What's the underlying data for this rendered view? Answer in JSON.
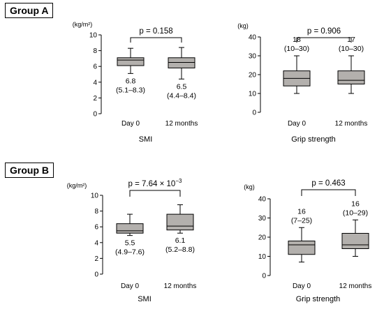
{
  "groups": [
    {
      "label": "Group A"
    },
    {
      "label": "Group B"
    }
  ],
  "chart_data": [
    {
      "type": "box",
      "group": "Group A",
      "xlabel": "SMI",
      "ylabel": "(kg/m²)",
      "ylim": [
        0,
        10
      ],
      "yticks": [
        0,
        2,
        4,
        6,
        8,
        10
      ],
      "categories": [
        "Day 0",
        "12 months"
      ],
      "boxes": [
        {
          "whislo": 5.1,
          "q1": 6.1,
          "med": 6.8,
          "q3": 7.1,
          "whishi": 8.3,
          "label_median": "6.8",
          "label_range": "(5.1–8.3)"
        },
        {
          "whislo": 4.4,
          "q1": 5.8,
          "med": 6.5,
          "q3": 7.1,
          "whishi": 8.4,
          "label_median": "6.5",
          "label_range": "(4.4–8.4)"
        }
      ],
      "pvalue": "p = 0.158",
      "pvalue_sup": ""
    },
    {
      "type": "box",
      "group": "Group A",
      "xlabel": "Grip  strength",
      "ylabel": "(kg)",
      "ylim": [
        0,
        40
      ],
      "yticks": [
        0,
        10,
        20,
        30,
        40
      ],
      "categories": [
        "Day 0",
        "12 months"
      ],
      "boxes": [
        {
          "whislo": 10,
          "q1": 14,
          "med": 18,
          "q3": 22,
          "whishi": 30,
          "label_median": "18",
          "label_range": "(10–30)"
        },
        {
          "whislo": 10,
          "q1": 15,
          "med": 17,
          "q3": 22,
          "whishi": 30,
          "label_median": "17",
          "label_range": "(10–30)"
        }
      ],
      "pvalue": "p = 0.906",
      "pvalue_sup": ""
    },
    {
      "type": "box",
      "group": "Group B",
      "xlabel": "SMI",
      "ylabel": "(kg/m²)",
      "ylim": [
        0,
        10
      ],
      "yticks": [
        0,
        2,
        4,
        6,
        8,
        10
      ],
      "categories": [
        "Day 0",
        "12 months"
      ],
      "boxes": [
        {
          "whislo": 4.9,
          "q1": 5.2,
          "med": 5.5,
          "q3": 6.4,
          "whishi": 7.6,
          "label_median": "5.5",
          "label_range": "(4.9–7.6)"
        },
        {
          "whislo": 5.2,
          "q1": 5.6,
          "med": 6.1,
          "q3": 7.6,
          "whishi": 8.8,
          "label_median": "6.1",
          "label_range": "(5.2–8.8)"
        }
      ],
      "pvalue": "p = 7.64 × 10",
      "pvalue_sup": "−3"
    },
    {
      "type": "box",
      "group": "Group B",
      "xlabel": "Grip  strength",
      "ylabel": "(kg)",
      "ylim": [
        0,
        40
      ],
      "yticks": [
        0,
        10,
        20,
        30,
        40
      ],
      "categories": [
        "Day 0",
        "12 months"
      ],
      "boxes": [
        {
          "whislo": 7,
          "q1": 11,
          "med": 16,
          "q3": 18,
          "whishi": 25,
          "label_median": "16",
          "label_range": "(7–25)"
        },
        {
          "whislo": 10,
          "q1": 14,
          "med": 16,
          "q3": 22,
          "whishi": 29,
          "label_median": "16",
          "label_range": "(10–29)"
        }
      ],
      "pvalue": "p = 0.463",
      "pvalue_sup": ""
    }
  ]
}
